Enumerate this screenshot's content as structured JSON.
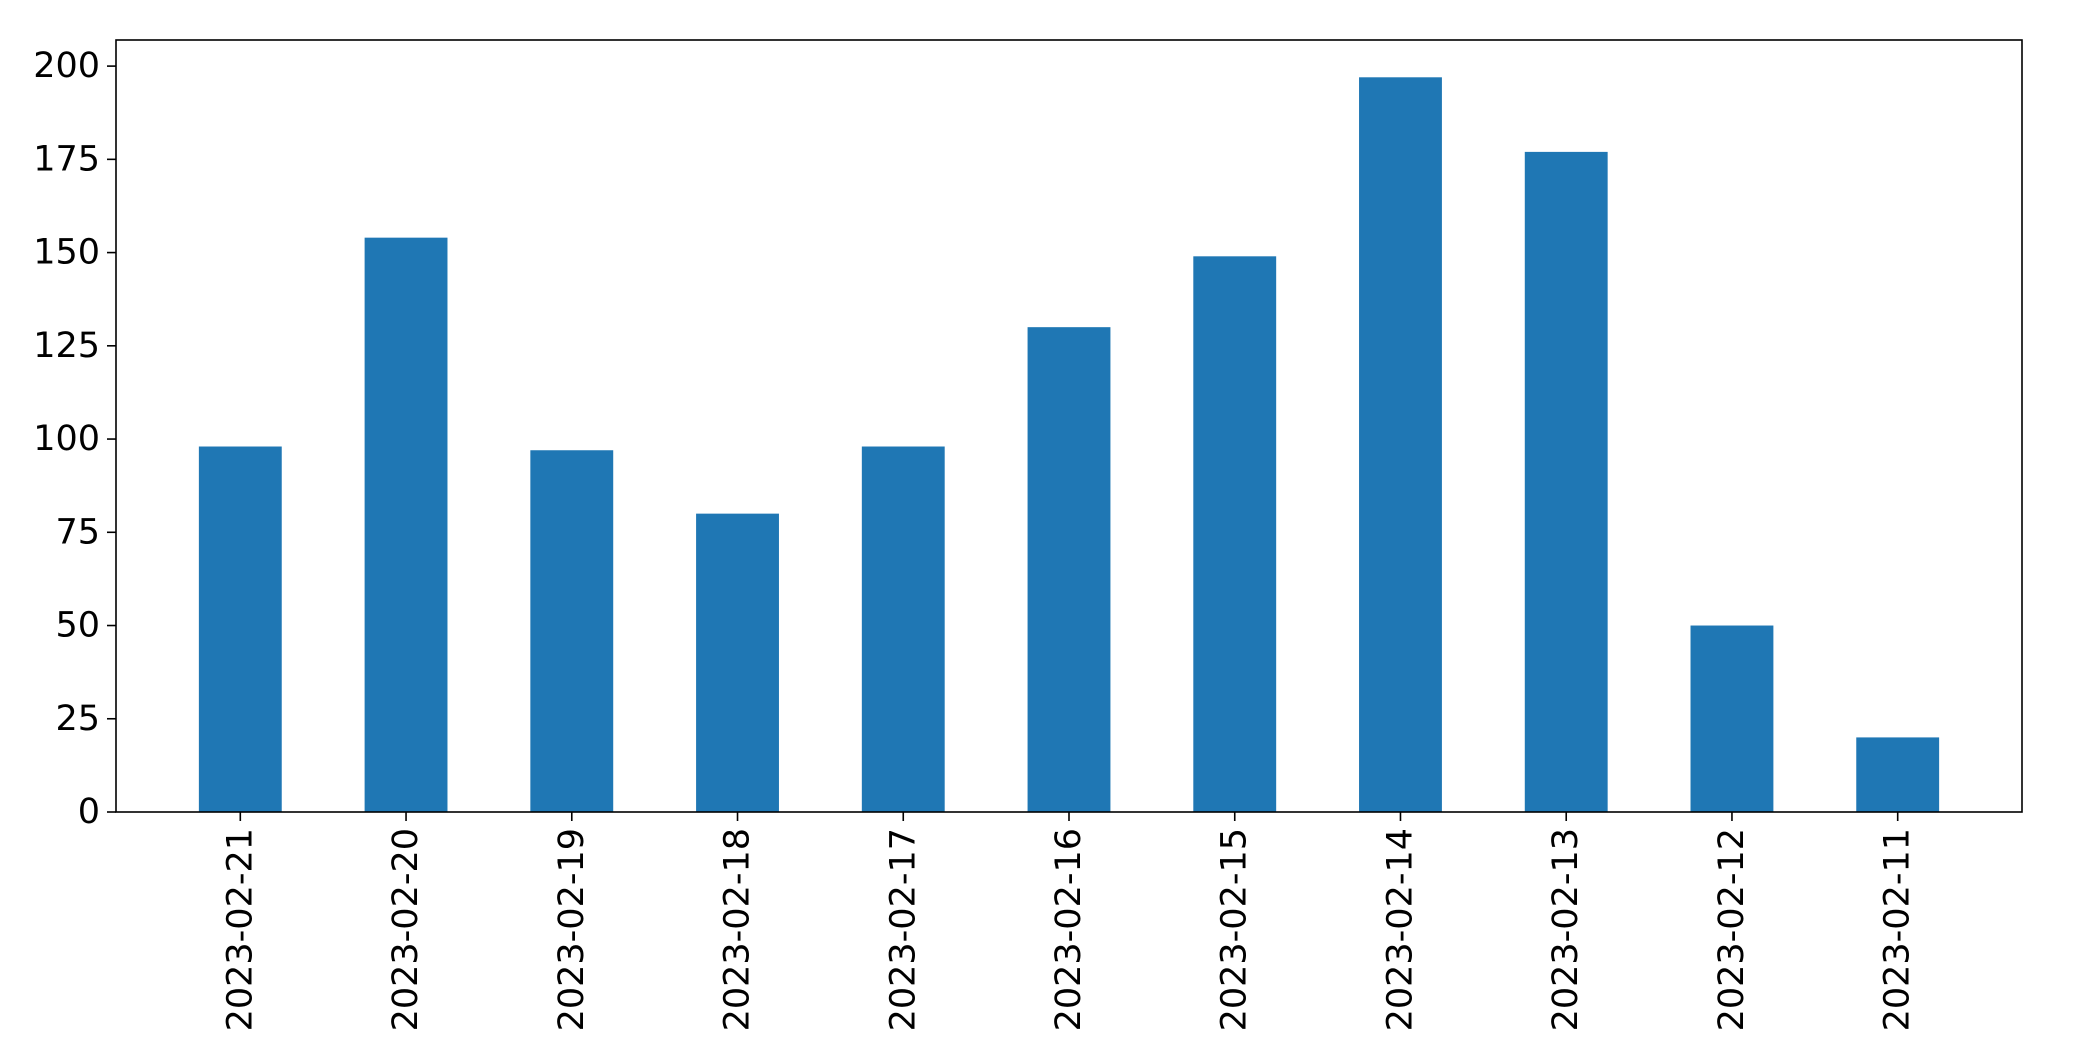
{
  "chart_data": {
    "type": "bar",
    "categories": [
      "2023-02-21",
      "2023-02-20",
      "2023-02-19",
      "2023-02-18",
      "2023-02-17",
      "2023-02-16",
      "2023-02-15",
      "2023-02-14",
      "2023-02-13",
      "2023-02-12",
      "2023-02-11"
    ],
    "values": [
      98,
      154,
      97,
      80,
      98,
      130,
      149,
      197,
      177,
      50,
      20
    ],
    "title": "",
    "xlabel": "",
    "ylabel": "",
    "ylim": [
      0,
      207
    ],
    "yticks": [
      0,
      25,
      50,
      75,
      100,
      125,
      150,
      175,
      200
    ],
    "grid": false,
    "legend": "none",
    "bar_color": "#1f77b4"
  }
}
